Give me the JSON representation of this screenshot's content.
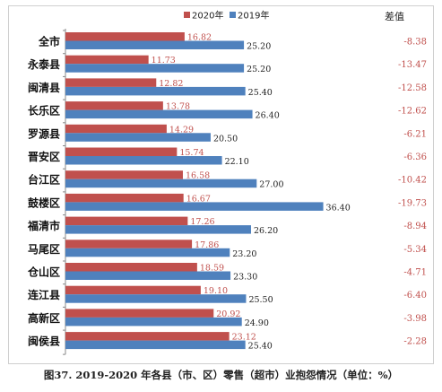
{
  "caption": "图37.  2019-2020 年各县（市、区）零售（超市）业抱怨情况（单位：%）",
  "chart_data": {
    "type": "bar",
    "orientation": "horizontal",
    "title": "",
    "xlabel": "",
    "ylabel": "",
    "xlim": [
      0,
      40
    ],
    "grid": false,
    "legend_position": "top-center",
    "categories": [
      "全市",
      "永泰县",
      "闽清县",
      "长乐区",
      "罗源县",
      "晋安区",
      "台江区",
      "鼓楼区",
      "福清市",
      "马尾区",
      "仓山区",
      "连江县",
      "高新区",
      "闽侯县"
    ],
    "series": [
      {
        "name": "2020年",
        "color": "#c0504d",
        "values": [
          16.82,
          11.73,
          12.82,
          13.78,
          14.29,
          15.74,
          16.58,
          16.67,
          17.26,
          17.86,
          18.59,
          19.1,
          20.92,
          23.12
        ],
        "labels": [
          "16.82",
          "11.73",
          "12.82",
          "13.78",
          "14.29",
          "15.74",
          "16.58",
          "16.67",
          "17.26",
          "17.86",
          "18.59",
          "19.10",
          "20.92",
          "23.12"
        ]
      },
      {
        "name": "2019年",
        "color": "#4f81bd",
        "values": [
          25.2,
          25.2,
          25.4,
          26.4,
          20.5,
          22.1,
          27.0,
          36.4,
          26.2,
          23.2,
          23.3,
          25.5,
          24.9,
          25.4
        ],
        "labels": [
          "25.20",
          "25.20",
          "25.40",
          "26.40",
          "20.50",
          "22.10",
          "27.00",
          "36.40",
          "26.20",
          "23.20",
          "23.30",
          "25.50",
          "24.90",
          "25.40"
        ]
      }
    ],
    "difference": {
      "title": "差值",
      "values": [
        -8.38,
        -13.47,
        -12.58,
        -12.62,
        -6.21,
        -6.36,
        -10.42,
        -19.73,
        -8.94,
        -5.34,
        -4.71,
        -6.4,
        -3.98,
        -2.28
      ],
      "labels": [
        "-8.38",
        "-13.47",
        "-12.58",
        "-12.62",
        "-6.21",
        "-6.36",
        "-10.42",
        "-19.73",
        "-8.94",
        "-5.34",
        "-4.71",
        "-6.40",
        "-3.98",
        "-2.28"
      ],
      "color": "#c0504d"
    }
  }
}
